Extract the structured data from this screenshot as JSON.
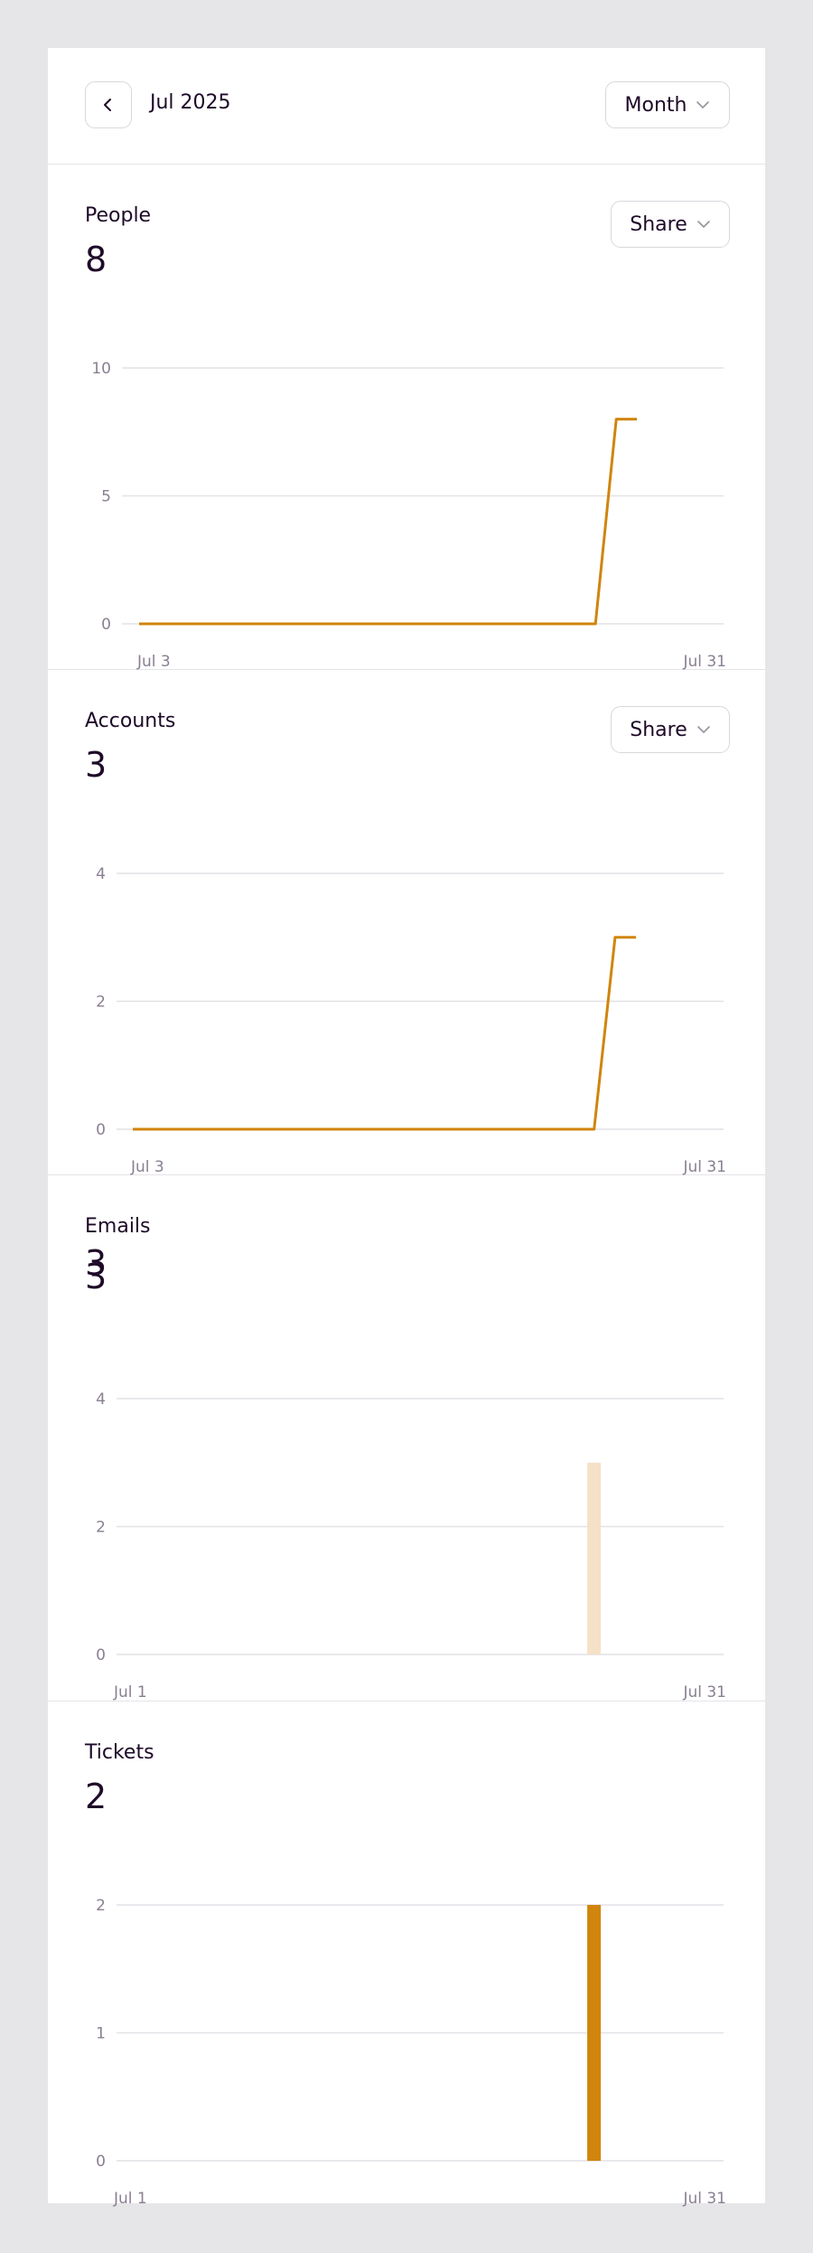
{
  "header": {
    "title": "Jul 2025",
    "range_label": "Month"
  },
  "panels": [
    {
      "title": "People",
      "value": "8",
      "share_label": "Share"
    },
    {
      "title": "Accounts",
      "value": "3",
      "share_label": "Share"
    },
    {
      "title": "Emails",
      "value": "3",
      "value_overlap": "3"
    },
    {
      "title": "Tickets",
      "value": "2"
    }
  ],
  "colors": {
    "accent": "#d0850d",
    "bar_faded": "#f5e1c7"
  },
  "chart_data": [
    {
      "type": "line",
      "title": "People",
      "x": [
        "Jul 3",
        "Jul 4",
        "Jul 5",
        "Jul 6",
        "Jul 7",
        "Jul 8",
        "Jul 9",
        "Jul 10",
        "Jul 11",
        "Jul 12",
        "Jul 13",
        "Jul 14",
        "Jul 15",
        "Jul 16",
        "Jul 17",
        "Jul 18",
        "Jul 19",
        "Jul 20",
        "Jul 21",
        "Jul 22",
        "Jul 23",
        "Jul 24",
        "Jul 25",
        "Jul 26",
        "Jul 27",
        "Jul 28",
        "Jul 29",
        "Jul 30",
        "Jul 31"
      ],
      "values": [
        0,
        0,
        0,
        0,
        0,
        0,
        0,
        0,
        0,
        0,
        0,
        0,
        0,
        0,
        0,
        0,
        0,
        0,
        0,
        0,
        0,
        0,
        0,
        8,
        8,
        null,
        null,
        null,
        null
      ],
      "x_tick_labels": [
        "Jul 3",
        "Jul 31"
      ],
      "y_ticks": [
        "0",
        "5",
        "10"
      ],
      "ylim": [
        0,
        10
      ],
      "grid": true
    },
    {
      "type": "line",
      "title": "Accounts",
      "x": [
        "Jul 3",
        "Jul 4",
        "Jul 5",
        "Jul 6",
        "Jul 7",
        "Jul 8",
        "Jul 9",
        "Jul 10",
        "Jul 11",
        "Jul 12",
        "Jul 13",
        "Jul 14",
        "Jul 15",
        "Jul 16",
        "Jul 17",
        "Jul 18",
        "Jul 19",
        "Jul 20",
        "Jul 21",
        "Jul 22",
        "Jul 23",
        "Jul 24",
        "Jul 25",
        "Jul 26",
        "Jul 27",
        "Jul 28",
        "Jul 29",
        "Jul 30",
        "Jul 31"
      ],
      "values": [
        0,
        0,
        0,
        0,
        0,
        0,
        0,
        0,
        0,
        0,
        0,
        0,
        0,
        0,
        0,
        0,
        0,
        0,
        0,
        0,
        0,
        0,
        0,
        3,
        3,
        null,
        null,
        null,
        null
      ],
      "x_tick_labels": [
        "Jul 3",
        "Jul 31"
      ],
      "y_ticks": [
        "0",
        "2",
        "4"
      ],
      "ylim": [
        0,
        4
      ],
      "grid": true
    },
    {
      "type": "bar",
      "title": "Emails",
      "categories": [
        "Jul 1",
        "Jul 2",
        "Jul 3",
        "Jul 4",
        "Jul 5",
        "Jul 6",
        "Jul 7",
        "Jul 8",
        "Jul 9",
        "Jul 10",
        "Jul 11",
        "Jul 12",
        "Jul 13",
        "Jul 14",
        "Jul 15",
        "Jul 16",
        "Jul 17",
        "Jul 18",
        "Jul 19",
        "Jul 20",
        "Jul 21",
        "Jul 22",
        "Jul 23",
        "Jul 24",
        "Jul 25",
        "Jul 26",
        "Jul 27",
        "Jul 28",
        "Jul 29",
        "Jul 30",
        "Jul 31"
      ],
      "values": [
        0,
        0,
        0,
        0,
        0,
        0,
        0,
        0,
        0,
        0,
        0,
        0,
        0,
        0,
        0,
        0,
        0,
        0,
        0,
        0,
        0,
        0,
        0,
        0,
        3,
        0,
        0,
        0,
        0,
        0,
        0
      ],
      "x_tick_labels": [
        "Jul 1",
        "Jul 31"
      ],
      "y_ticks": [
        "0",
        "2",
        "4"
      ],
      "ylim": [
        0,
        4
      ],
      "grid": true
    },
    {
      "type": "bar",
      "title": "Tickets",
      "categories": [
        "Jul 1",
        "Jul 2",
        "Jul 3",
        "Jul 4",
        "Jul 5",
        "Jul 6",
        "Jul 7",
        "Jul 8",
        "Jul 9",
        "Jul 10",
        "Jul 11",
        "Jul 12",
        "Jul 13",
        "Jul 14",
        "Jul 15",
        "Jul 16",
        "Jul 17",
        "Jul 18",
        "Jul 19",
        "Jul 20",
        "Jul 21",
        "Jul 22",
        "Jul 23",
        "Jul 24",
        "Jul 25",
        "Jul 26",
        "Jul 27",
        "Jul 28",
        "Jul 29",
        "Jul 30",
        "Jul 31"
      ],
      "values": [
        0,
        0,
        0,
        0,
        0,
        0,
        0,
        0,
        0,
        0,
        0,
        0,
        0,
        0,
        0,
        0,
        0,
        0,
        0,
        0,
        0,
        0,
        0,
        0,
        2,
        0,
        0,
        0,
        0,
        0,
        0
      ],
      "x_tick_labels": [
        "Jul 1",
        "Jul 31"
      ],
      "y_ticks": [
        "0",
        "1",
        "2"
      ],
      "ylim": [
        0,
        2
      ],
      "grid": true
    }
  ]
}
